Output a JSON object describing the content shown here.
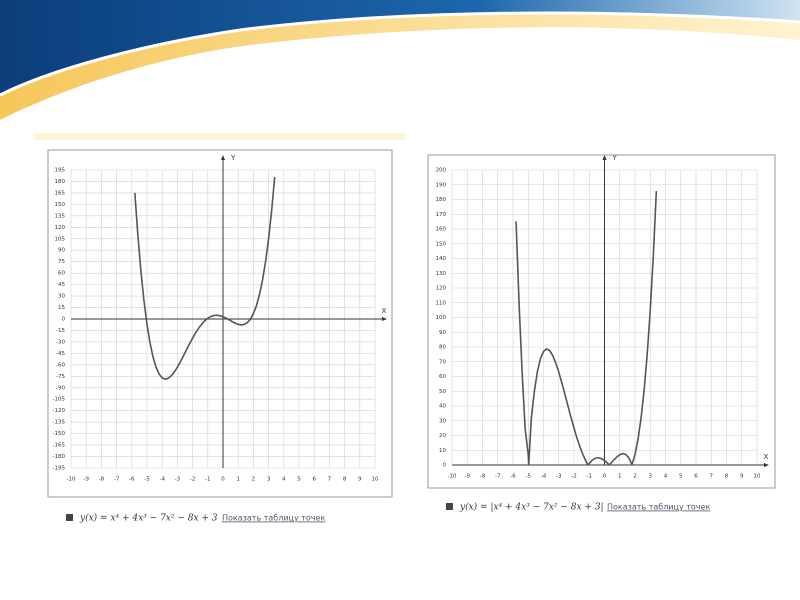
{
  "chart_data": [
    {
      "type": "line",
      "x_label": "X",
      "y_label": "Y",
      "caption": "y(x) = x⁴ + 4x³ − 7x² − 8x + 3",
      "link_text": "Показать таблицу точек",
      "xlim": [
        -10,
        10
      ],
      "xticks": [
        -10,
        -9,
        -8,
        -7,
        -6,
        -5,
        -4,
        -3,
        -2,
        -1,
        0,
        1,
        2,
        3,
        4,
        5,
        6,
        7,
        8,
        9,
        10
      ],
      "ylim": [
        -195,
        195
      ],
      "yticks": [
        195,
        180,
        165,
        150,
        135,
        120,
        105,
        90,
        75,
        60,
        45,
        30,
        15,
        0,
        -15,
        -30,
        -45,
        -60,
        -75,
        -90,
        -105,
        -120,
        -135,
        -150,
        -165,
        -180,
        -195
      ],
      "grid": true,
      "series": [
        {
          "color": "#555555",
          "x": [
            -5.8,
            -5.6,
            -5.4,
            -5.2,
            -5.0,
            -4.8,
            -4.6,
            -4.4,
            -4.2,
            -4.0,
            -3.8,
            -3.6,
            -3.4,
            -3.2,
            -3.0,
            -2.8,
            -2.6,
            -2.4,
            -2.2,
            -2.0,
            -1.8,
            -1.6,
            -1.4,
            -1.2,
            -1.0,
            -0.8,
            -0.6,
            -0.4,
            -0.2,
            0,
            0.2,
            0.4,
            0.6,
            0.8,
            1.0,
            1.2,
            1.4,
            1.6,
            1.8,
            2.0,
            2.2,
            2.4,
            2.6,
            2.8,
            3.0,
            3.2,
            3.4
          ],
          "values": [
            165.1,
            109.3,
            62.5,
            24.1,
            -7,
            -31.4,
            -49.9,
            -63.3,
            -72.1,
            -77,
            -78.7,
            -77.6,
            -74.3,
            -69.3,
            -63,
            -55.8,
            -48.1,
            -40.2,
            -32.4,
            -25,
            -18.1,
            -12,
            -6.7,
            -2.3,
            1,
            3.3,
            4.6,
            4.9,
            4.3,
            3,
            1.2,
            -1,
            -3.3,
            -5.4,
            -7,
            -7.7,
            -7.1,
            -4.8,
            -0.3,
            7,
            17.5,
            32,
            50.9,
            75,
            105,
            141.7,
            185.7
          ]
        }
      ]
    },
    {
      "type": "line",
      "x_label": "X",
      "y_label": "Y",
      "caption": "y(x) = |x⁴ + 4x³ − 7x² − 8x + 3|",
      "link_text": "Показать таблицу точек",
      "xlim": [
        -10,
        10
      ],
      "xticks": [
        -10,
        -9,
        -8,
        -7,
        -6,
        -5,
        -4,
        -3,
        -2,
        -1,
        0,
        1,
        2,
        3,
        4,
        5,
        6,
        7,
        8,
        9,
        10
      ],
      "ylim": [
        0,
        200
      ],
      "yticks": [
        200,
        190,
        180,
        170,
        160,
        150,
        140,
        130,
        120,
        110,
        100,
        90,
        80,
        70,
        60,
        50,
        40,
        30,
        20,
        10,
        0
      ],
      "grid": true,
      "series": [
        {
          "color": "#555555",
          "x": [
            -5.8,
            -5.6,
            -5.4,
            -5.2,
            -5.0,
            -4.97,
            -4.8,
            -4.6,
            -4.4,
            -4.2,
            -4.0,
            -3.8,
            -3.6,
            -3.4,
            -3.2,
            -3.0,
            -2.8,
            -2.6,
            -2.4,
            -2.2,
            -2.0,
            -1.8,
            -1.6,
            -1.4,
            -1.2,
            -1.1,
            -1.0,
            -0.8,
            -0.6,
            -0.4,
            -0.2,
            0,
            0.2,
            0.3,
            0.4,
            0.6,
            0.8,
            1.0,
            1.2,
            1.4,
            1.6,
            1.8,
            2.0,
            2.2,
            2.4,
            2.6,
            2.8,
            3.0,
            3.2,
            3.4
          ],
          "values": [
            165.1,
            109.3,
            62.5,
            24.1,
            7,
            0,
            31.4,
            49.9,
            63.3,
            72.1,
            77,
            78.7,
            77.6,
            74.3,
            69.3,
            63,
            55.8,
            48.1,
            40.2,
            32.4,
            25,
            18.1,
            12,
            6.7,
            2.3,
            0,
            1,
            3.3,
            4.6,
            4.9,
            4.3,
            3,
            1.2,
            0,
            1,
            3.3,
            5.4,
            7,
            7.7,
            7.1,
            4.8,
            0.3,
            7,
            17.5,
            32,
            50.9,
            75,
            105,
            141.7,
            185.7
          ]
        }
      ]
    }
  ]
}
